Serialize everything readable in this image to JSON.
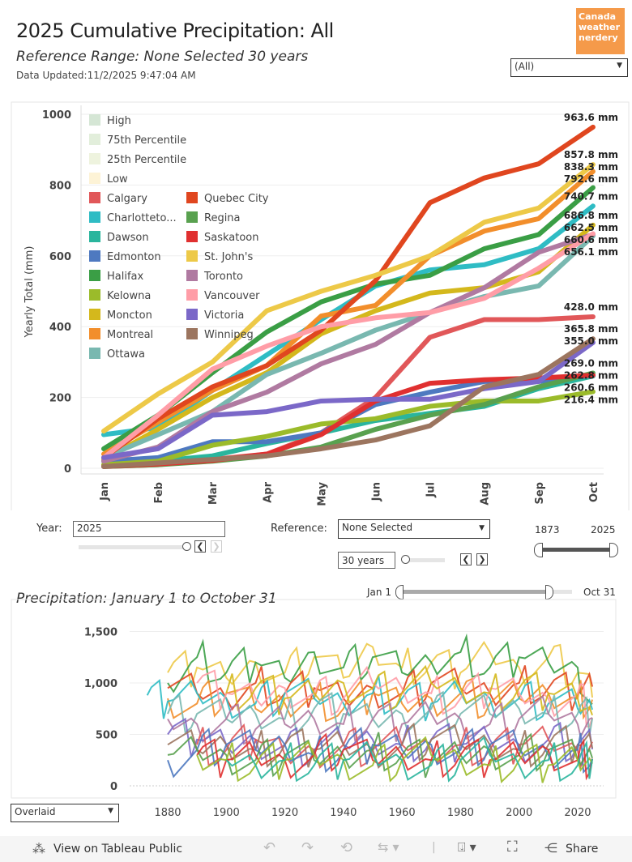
{
  "header": {
    "title": "2025 Cumulative Precipitation: All",
    "subtitle": "Reference Range: None Selected 30 years",
    "updated": "Data Updated:11/2/2025 9:47:04 AM",
    "logo": "Canada weather nerdery",
    "filter_value": "(All)"
  },
  "chart_data": [
    {
      "type": "line",
      "ylabel": "Yearly Total (mm)",
      "ylim": [
        0,
        1000
      ],
      "yticks": [
        0,
        200,
        400,
        600,
        800,
        1000
      ],
      "categories": [
        "Jan",
        "Feb",
        "Mar",
        "Apr",
        "May",
        "Jun",
        "Jul",
        "Aug",
        "Sep",
        "Oct"
      ],
      "legend_bands": [
        {
          "name": "High",
          "color": "#d5e6d5"
        },
        {
          "name": "75th Percentile",
          "color": "#e2eedb"
        },
        {
          "name": "25th Percentile",
          "color": "#eef3de"
        },
        {
          "name": "Low",
          "color": "#fdf3d6"
        }
      ],
      "series": [
        {
          "name": "Calgary",
          "color": "#e15759",
          "values": [
            5,
            10,
            25,
            40,
            100,
            200,
            370,
            420,
            420,
            428.0
          ],
          "label": "428.0 mm"
        },
        {
          "name": "Charlottetown",
          "legend": "Charlotteto...",
          "color": "#2fbcc4",
          "values": [
            95,
            115,
            220,
            320,
            420,
            515,
            560,
            575,
            620,
            740.7
          ],
          "label": "740.7 mm"
        },
        {
          "name": "Dawson",
          "color": "#2ab59d",
          "values": [
            20,
            20,
            35,
            70,
            100,
            135,
            155,
            175,
            225,
            260.6
          ],
          "label": "260.6 mm"
        },
        {
          "name": "Edmonton",
          "color": "#4e79c0",
          "values": [
            20,
            30,
            75,
            75,
            100,
            180,
            215,
            245,
            245,
            262.8
          ],
          "label": "262.8 mm"
        },
        {
          "name": "Halifax",
          "color": "#3a9e45",
          "values": [
            55,
            150,
            270,
            385,
            470,
            520,
            545,
            620,
            660,
            792.6
          ],
          "label": "792.6 mm"
        },
        {
          "name": "Kelowna",
          "color": "#9bbb2a",
          "values": [
            10,
            20,
            65,
            90,
            125,
            140,
            175,
            190,
            190,
            216.4
          ],
          "label": "216.4 mm"
        },
        {
          "name": "Moncton",
          "color": "#d4b81c",
          "values": [
            25,
            110,
            200,
            270,
            380,
            445,
            495,
            510,
            555,
            686.8
          ],
          "label": "686.8 mm"
        },
        {
          "name": "Montreal",
          "color": "#f28e2b",
          "values": [
            40,
            130,
            220,
            290,
            430,
            460,
            600,
            670,
            705,
            838.3
          ],
          "label": "838.3 mm"
        },
        {
          "name": "Ottawa",
          "color": "#79b8b0",
          "values": [
            30,
            95,
            160,
            265,
            325,
            390,
            440,
            485,
            515,
            656.1
          ],
          "label": "656.1 mm"
        },
        {
          "name": "Quebec City",
          "color": "#e0461f",
          "values": [
            30,
            140,
            230,
            290,
            390,
            530,
            750,
            820,
            860,
            963.6
          ],
          "label": "963.6 mm"
        },
        {
          "name": "Regina",
          "color": "#59a14f",
          "values": [
            5,
            10,
            20,
            35,
            60,
            110,
            150,
            180,
            230,
            269.0
          ],
          "label": "269.0 mm"
        },
        {
          "name": "Saskatoon",
          "color": "#e03030",
          "values": [
            5,
            12,
            22,
            40,
            95,
            190,
            240,
            250,
            255,
            263.0
          ],
          "label": ""
        },
        {
          "name": "St. John's",
          "color": "#edc948",
          "values": [
            105,
            210,
            300,
            445,
            500,
            545,
            600,
            695,
            735,
            857.8
          ],
          "label": "857.8 mm"
        },
        {
          "name": "Toronto",
          "color": "#b07aa1",
          "values": [
            20,
            60,
            160,
            215,
            295,
            350,
            440,
            510,
            610,
            660.6
          ],
          "label": "660.6 mm"
        },
        {
          "name": "Vancouver",
          "color": "#ff9da7",
          "values": [
            30,
            150,
            280,
            345,
            400,
            425,
            440,
            480,
            565,
            662.5
          ],
          "label": "662.5 mm"
        },
        {
          "name": "Victoria",
          "color": "#7b68c8",
          "values": [
            30,
            55,
            150,
            160,
            190,
            195,
            195,
            225,
            245,
            355.0
          ],
          "label": "355.0 mm"
        },
        {
          "name": "Winnipeg",
          "color": "#9c755f",
          "values": [
            5,
            15,
            25,
            35,
            55,
            80,
            120,
            230,
            265,
            365.8
          ],
          "label": "365.8 mm"
        }
      ]
    },
    {
      "type": "line",
      "title": "Precipitation: January 1 to October 31",
      "ylim": [
        0,
        1600
      ],
      "yticks": [
        "0",
        "500",
        "1,000",
        "1,500"
      ],
      "xlim": [
        1870,
        2025
      ],
      "xticks": [
        1880,
        1900,
        1920,
        1940,
        1960,
        1980,
        2000,
        2020
      ],
      "x": [
        1873,
        1880,
        1890,
        1900,
        1910,
        1920,
        1930,
        1940,
        1950,
        1960,
        1970,
        1980,
        1990,
        2000,
        2010,
        2020,
        2025
      ],
      "series": [
        {
          "name": "St. John's",
          "color": "#edc948",
          "values": [
            null,
            1100,
            1150,
            1050,
            1200,
            1100,
            1250,
            1050,
            1350,
            1150,
            1200,
            1100,
            1300,
            1150,
            1250,
            1100,
            858
          ]
        },
        {
          "name": "Halifax",
          "color": "#3a9e45",
          "values": [
            null,
            1000,
            1250,
            1100,
            1200,
            1050,
            1300,
            1150,
            1250,
            1100,
            1200,
            1300,
            1150,
            1250,
            1200,
            1150,
            793
          ]
        },
        {
          "name": "Quebec City",
          "color": "#e0461f",
          "values": [
            null,
            950,
            900,
            850,
            1000,
            900,
            950,
            850,
            950,
            900,
            1000,
            950,
            900,
            1000,
            950,
            900,
            964
          ]
        },
        {
          "name": "Montreal",
          "color": "#f28e2b",
          "values": [
            null,
            850,
            800,
            900,
            750,
            800,
            850,
            750,
            900,
            800,
            850,
            900,
            800,
            850,
            900,
            850,
            838
          ]
        },
        {
          "name": "Charlottetown",
          "color": "#2fbcc4",
          "values": [
            880,
            820,
            900,
            850,
            800,
            900,
            850,
            800,
            900,
            850,
            800,
            900,
            850,
            850,
            800,
            750,
            741
          ]
        },
        {
          "name": "Vancouver",
          "color": "#ff9da7",
          "values": [
            null,
            null,
            1000,
            900,
            850,
            950,
            900,
            850,
            1000,
            950,
            900,
            850,
            950,
            900,
            850,
            900,
            663
          ]
        },
        {
          "name": "Moncton",
          "color": "#d4b81c",
          "values": [
            null,
            null,
            null,
            900,
            950,
            850,
            900,
            1000,
            950,
            900,
            1000,
            950,
            900,
            950,
            900,
            850,
            687
          ]
        },
        {
          "name": "Ottawa",
          "color": "#79b8b0",
          "values": [
            null,
            700,
            700,
            650,
            700,
            650,
            750,
            700,
            650,
            700,
            750,
            700,
            700,
            750,
            700,
            700,
            656
          ]
        },
        {
          "name": "Toronto",
          "color": "#b07aa1",
          "values": [
            null,
            650,
            600,
            650,
            550,
            600,
            650,
            600,
            650,
            600,
            700,
            650,
            600,
            650,
            700,
            600,
            661
          ]
        },
        {
          "name": "Victoria",
          "color": "#7b68c8",
          "values": [
            null,
            500,
            450,
            400,
            450,
            400,
            350,
            400,
            450,
            400,
            450,
            400,
            450,
            400,
            450,
            400,
            355
          ]
        },
        {
          "name": "Calgary",
          "color": "#e15759",
          "values": [
            null,
            null,
            400,
            350,
            450,
            300,
            350,
            400,
            350,
            400,
            350,
            400,
            350,
            400,
            450,
            350,
            428
          ]
        },
        {
          "name": "Winnipeg",
          "color": "#9c755f",
          "values": [
            null,
            400,
            350,
            400,
            350,
            400,
            350,
            400,
            350,
            400,
            450,
            400,
            400,
            350,
            400,
            400,
            366
          ]
        },
        {
          "name": "Edmonton",
          "color": "#4e79c0",
          "values": [
            null,
            250,
            350,
            400,
            350,
            400,
            300,
            350,
            400,
            350,
            400,
            350,
            400,
            350,
            300,
            350,
            263
          ]
        },
        {
          "name": "Regina",
          "color": "#59a14f",
          "values": [
            null,
            300,
            350,
            300,
            250,
            300,
            250,
            300,
            350,
            300,
            250,
            300,
            350,
            300,
            350,
            250,
            269
          ]
        },
        {
          "name": "Saskatoon",
          "color": "#e03030",
          "values": [
            null,
            null,
            300,
            250,
            300,
            250,
            300,
            350,
            250,
            300,
            250,
            300,
            250,
            300,
            350,
            250,
            263
          ]
        },
        {
          "name": "Kelowna",
          "color": "#9bbb2a",
          "values": [
            null,
            null,
            300,
            250,
            200,
            250,
            300,
            250,
            200,
            250,
            300,
            250,
            200,
            250,
            200,
            250,
            216
          ]
        },
        {
          "name": "Dawson",
          "color": "#2ab59d",
          "values": [
            null,
            null,
            null,
            250,
            200,
            250,
            200,
            250,
            300,
            250,
            200,
            250,
            300,
            200,
            250,
            200,
            261
          ]
        }
      ]
    }
  ],
  "controls": {
    "year_label": "Year:",
    "year_value": "2025",
    "reference_label": "Reference:",
    "reference_value": "None Selected",
    "years_value": "30 years",
    "range_start": "1873",
    "range_end": "2025",
    "date_start": "Jan 1",
    "date_end": "Oct 31",
    "view_mode": "Overlaid",
    "prev": "❮",
    "next": "❯"
  },
  "footer": {
    "view_label": "View on Tableau Public",
    "share_label": "Share"
  }
}
